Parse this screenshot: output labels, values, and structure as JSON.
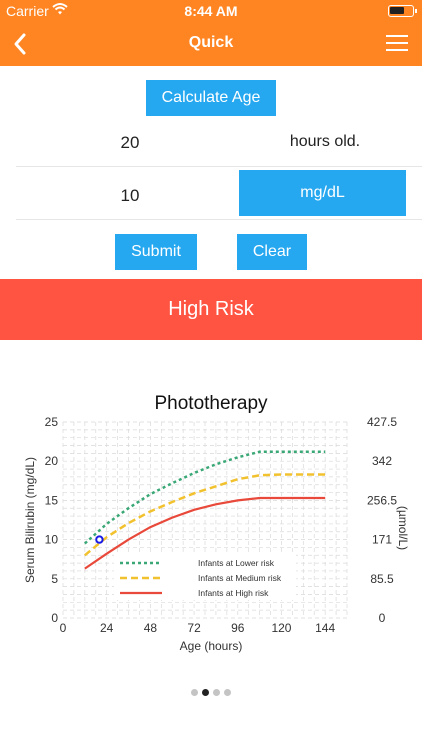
{
  "status_bar": {
    "carrier": "Carrier",
    "time": "8:44 AM"
  },
  "nav": {
    "title": "Quick"
  },
  "form": {
    "calculate_age_label": "Calculate Age",
    "hours_value": "20",
    "hours_unit_label": "hours old.",
    "bilirubin_value": "10",
    "unit_button_label": "mg/dL",
    "submit_label": "Submit",
    "clear_label": "Clear"
  },
  "result": {
    "risk_label": "High Risk"
  },
  "pager": {
    "count": 4,
    "active": 1
  },
  "colors": {
    "accent": "#ff8523",
    "button": "#26a8f0",
    "risk": "#ff5442",
    "low": "#3aa876",
    "medium": "#f2c12e",
    "high": "#e8493a",
    "marker": "#1a1ae6"
  },
  "chart_data": {
    "type": "line",
    "title": "Phototherapy",
    "xlabel": "Age (hours)",
    "ylabel": "Serum Bilirubin (mg/dL)",
    "y2label": "(µmol/L)",
    "xlim": [
      0,
      156
    ],
    "ylim": [
      0,
      25
    ],
    "x_ticks": [
      0,
      24,
      48,
      72,
      96,
      120,
      144
    ],
    "y_ticks": [
      0,
      5,
      10,
      15,
      20,
      25
    ],
    "y2_ticks": [
      "0",
      "85.5",
      "171",
      "256.5",
      "342",
      "427.5"
    ],
    "grid": true,
    "legend_position": "bottom-center",
    "series": [
      {
        "name": "Infants at Lower risk",
        "style": "dotted",
        "x": [
          12,
          24,
          36,
          48,
          60,
          72,
          84,
          96,
          108,
          120,
          132,
          144
        ],
        "y": [
          9.5,
          12,
          14,
          15.8,
          17.2,
          18.5,
          19.6,
          20.5,
          21.2,
          21.2,
          21.2,
          21.2
        ]
      },
      {
        "name": "Infants at Medium risk",
        "style": "dashed",
        "x": [
          12,
          24,
          36,
          48,
          60,
          72,
          84,
          96,
          108,
          120,
          132,
          144
        ],
        "y": [
          8,
          10.3,
          12.1,
          13.6,
          14.8,
          15.9,
          16.8,
          17.7,
          18.2,
          18.3,
          18.3,
          18.3
        ]
      },
      {
        "name": "Infants at High risk",
        "style": "solid",
        "x": [
          12,
          24,
          36,
          48,
          60,
          72,
          84,
          96,
          108,
          120,
          132,
          144
        ],
        "y": [
          6.3,
          8.2,
          10,
          11.6,
          12.8,
          13.8,
          14.5,
          15,
          15.3,
          15.3,
          15.3,
          15.3
        ]
      }
    ],
    "marker": {
      "x": 20,
      "y": 10
    }
  }
}
